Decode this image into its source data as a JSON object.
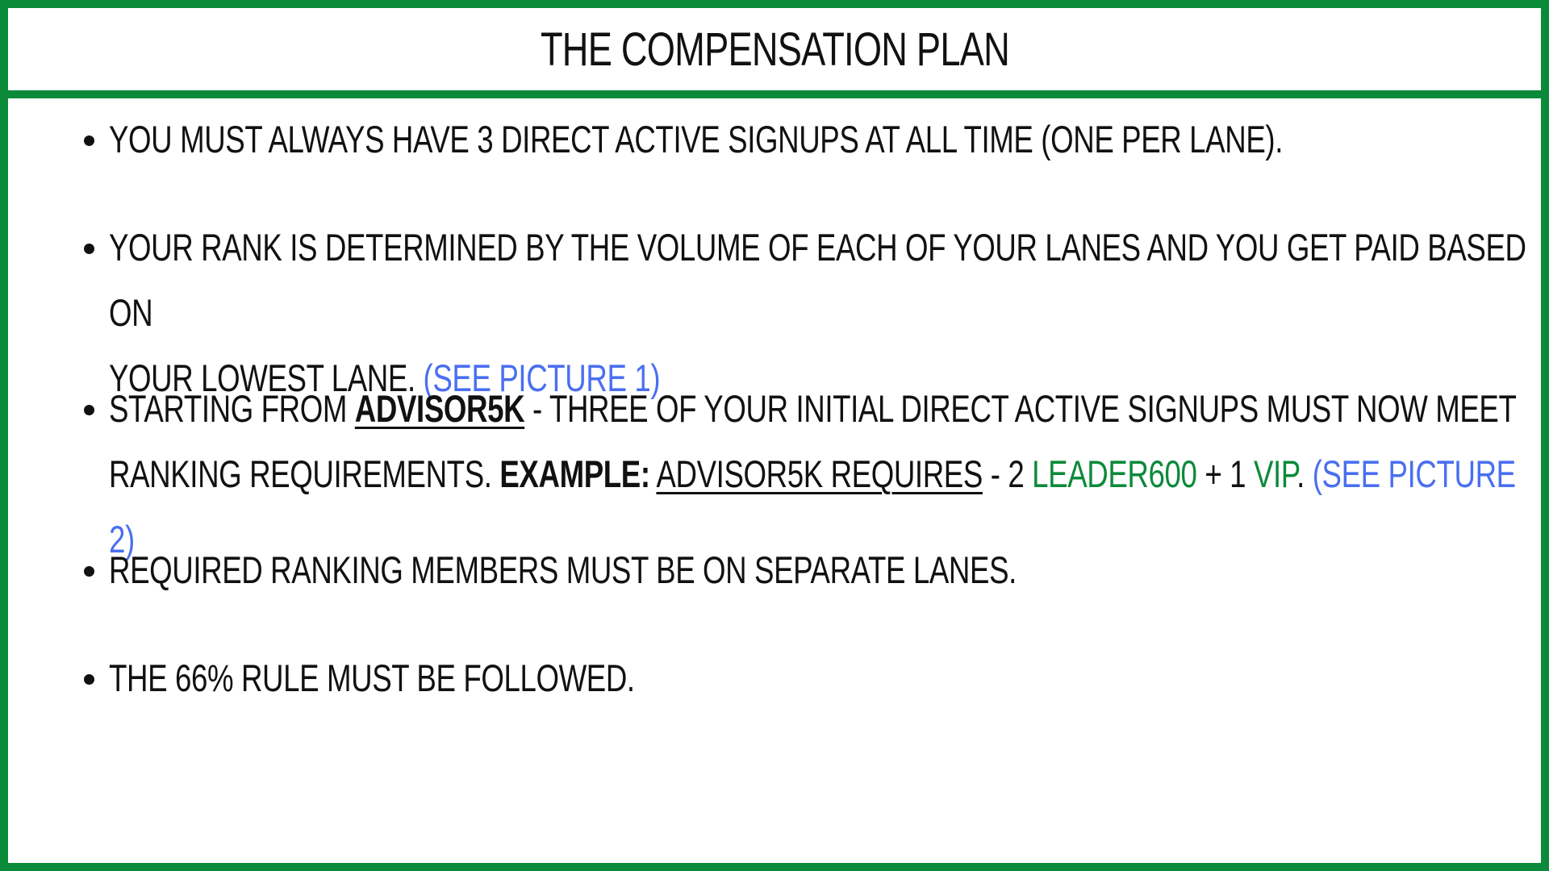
{
  "header": {
    "title": "The Compensation Plan"
  },
  "items": [
    {
      "text": "You must always have 3 direct active signups at all time (one per lane)."
    },
    {
      "line1": "Your rank is determined by the volume of each of your lanes and you get paid based on",
      "line2": "your lowest lane.",
      "link": "(See picture 1)"
    },
    {
      "prefix": "Starting from",
      "rank": "Advisor5k",
      "line1_rest": "- three of your initial direct active signups must now meet",
      "line2_prefix": "ranking requirements.",
      "example_label": "Example:",
      "example_underlined": "Advisor5k requires",
      "dash_two": "- 2",
      "leader": "Leader600",
      "plus_one": "+ 1",
      "vip": "VIP",
      "period": ".",
      "link": "(See picture 2)"
    },
    {
      "text": "Required ranking members must be on separate lanes."
    },
    {
      "text": "The 66% rule must be followed."
    }
  ],
  "colors": {
    "border": "#0b8a3a",
    "link": "#4a6ff0",
    "rank_green": "#0b8a3a"
  }
}
